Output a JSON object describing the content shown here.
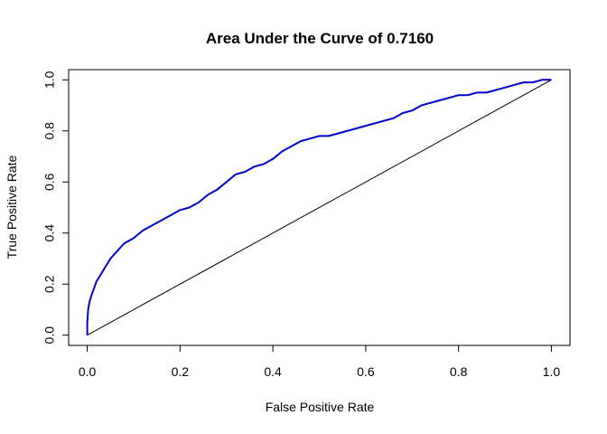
{
  "chart_data": {
    "type": "line",
    "title": "Area Under the Curve of 0.7160",
    "xlabel": "False Positive Rate",
    "ylabel": "True Positive Rate",
    "xlim": [
      -0.04,
      1.04
    ],
    "ylim": [
      -0.04,
      1.04
    ],
    "x_ticks": [
      0.0,
      0.2,
      0.4,
      0.6,
      0.8,
      1.0
    ],
    "y_ticks": [
      0.0,
      0.2,
      0.4,
      0.6,
      0.8,
      1.0
    ],
    "x_tick_labels": [
      "0.0",
      "0.2",
      "0.4",
      "0.6",
      "0.8",
      "1.0"
    ],
    "y_tick_labels": [
      "0.0",
      "0.2",
      "0.4",
      "0.6",
      "0.8",
      "1.0"
    ],
    "grid": false,
    "colors": {
      "roc_curve": "#0000cc",
      "reference_line": "#000000"
    },
    "series": [
      {
        "x": [
          0.0,
          0.0,
          0.002,
          0.005,
          0.008,
          0.012,
          0.02,
          0.03,
          0.04,
          0.05,
          0.06,
          0.07,
          0.08,
          0.09,
          0.1,
          0.12,
          0.14,
          0.16,
          0.18,
          0.2,
          0.22,
          0.24,
          0.26,
          0.28,
          0.3,
          0.32,
          0.34,
          0.36,
          0.38,
          0.4,
          0.42,
          0.44,
          0.46,
          0.48,
          0.5,
          0.52,
          0.54,
          0.56,
          0.58,
          0.6,
          0.62,
          0.64,
          0.66,
          0.68,
          0.7,
          0.72,
          0.74,
          0.76,
          0.78,
          0.8,
          0.82,
          0.84,
          0.86,
          0.88,
          0.9,
          0.92,
          0.94,
          0.96,
          0.98,
          1.0
        ],
        "y": [
          0.0,
          0.05,
          0.1,
          0.13,
          0.15,
          0.17,
          0.21,
          0.24,
          0.27,
          0.3,
          0.32,
          0.34,
          0.36,
          0.37,
          0.38,
          0.41,
          0.43,
          0.45,
          0.47,
          0.49,
          0.5,
          0.52,
          0.55,
          0.57,
          0.6,
          0.63,
          0.64,
          0.66,
          0.67,
          0.69,
          0.72,
          0.74,
          0.76,
          0.77,
          0.78,
          0.78,
          0.79,
          0.8,
          0.81,
          0.82,
          0.83,
          0.84,
          0.85,
          0.87,
          0.88,
          0.9,
          0.91,
          0.92,
          0.93,
          0.94,
          0.94,
          0.95,
          0.95,
          0.96,
          0.97,
          0.98,
          0.99,
          0.99,
          1.0,
          1.0
        ]
      },
      {
        "x": [
          0.0,
          1.0
        ],
        "y": [
          0.0,
          1.0
        ]
      }
    ]
  }
}
